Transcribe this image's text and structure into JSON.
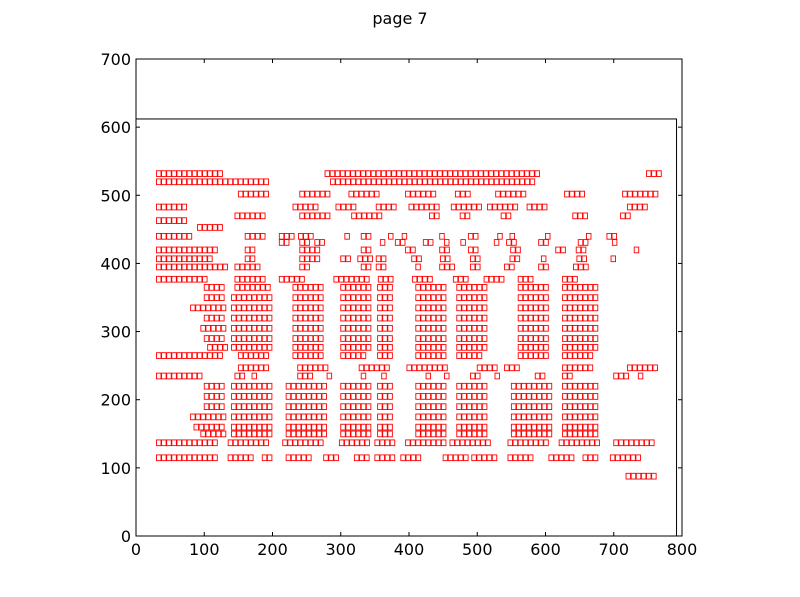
{
  "chart_data": {
    "type": "scatter",
    "title": "page 7",
    "xlabel": "",
    "ylabel": "",
    "xlim": [
      0,
      800
    ],
    "ylim": [
      0,
      700
    ],
    "x_ticks": [
      "0",
      "100",
      "200",
      "300",
      "400",
      "500",
      "600",
      "700",
      "800"
    ],
    "y_ticks": [
      "0",
      "100",
      "200",
      "300",
      "400",
      "500",
      "600",
      "700"
    ],
    "grid": false,
    "marker_color": "#ff0000",
    "page_outline": {
      "x0": 0,
      "y0": 0,
      "x1": 792,
      "y1": 612
    },
    "box_size": {
      "w": 7.5,
      "h": 9
    },
    "rows": [
      {
        "y": 527,
        "segments": [
          [
            30,
            130
          ],
          [
            277,
            592
          ],
          [
            748,
            773
          ]
        ]
      },
      {
        "y": 515,
        "segments": [
          [
            30,
            200
          ],
          [
            285,
            585
          ]
        ]
      },
      {
        "y": 497,
        "segments": [
          [
            150,
            198
          ],
          [
            240,
            290
          ],
          [
            312,
            362
          ],
          [
            395,
            445
          ],
          [
            468,
            495
          ],
          [
            527,
            575
          ],
          [
            628,
            665
          ],
          [
            713,
            768
          ]
        ]
      },
      {
        "y": 478,
        "segments": [
          [
            30,
            80
          ],
          [
            230,
            270
          ],
          [
            293,
            330
          ],
          [
            352,
            385
          ],
          [
            400,
            450
          ],
          [
            462,
            510
          ],
          [
            515,
            560
          ],
          [
            573,
            610
          ],
          [
            720,
            752
          ]
        ]
      },
      {
        "y": 465,
        "segments": [
          [
            145,
            195
          ],
          [
            240,
            288
          ],
          [
            316,
            366
          ],
          [
            430,
            447
          ],
          [
            475,
            492
          ],
          [
            535,
            550
          ],
          [
            640,
            665
          ],
          [
            710,
            728
          ]
        ]
      },
      {
        "y": 458,
        "segments": [
          [
            30,
            80
          ]
        ]
      },
      {
        "y": 448,
        "segments": [
          [
            90,
            130
          ]
        ]
      },
      {
        "y": 435,
        "segments": [
          [
            30,
            85
          ],
          [
            160,
            195
          ],
          [
            210,
            235
          ],
          [
            238,
            262
          ],
          [
            306,
            316
          ],
          [
            330,
            346
          ],
          [
            370,
            378
          ],
          [
            390,
            400
          ],
          [
            425,
            432
          ],
          [
            445,
            453
          ],
          [
            487,
            502
          ],
          [
            530,
            540
          ],
          [
            548,
            557
          ],
          [
            600,
            610
          ],
          [
            660,
            670
          ],
          [
            690,
            705
          ]
        ]
      },
      {
        "y": 426,
        "segments": [
          [
            210,
            225
          ],
          [
            240,
            255
          ],
          [
            262,
            278
          ],
          [
            335,
            340
          ],
          [
            358,
            372
          ],
          [
            380,
            402
          ],
          [
            421,
            436
          ],
          [
            452,
            462
          ],
          [
            476,
            490
          ],
          [
            525,
            536
          ],
          [
            543,
            560
          ],
          [
            590,
            605
          ],
          [
            648,
            663
          ],
          [
            698,
            712
          ]
        ]
      },
      {
        "y": 415,
        "segments": [
          [
            30,
            120
          ],
          [
            160,
            180
          ],
          [
            240,
            270
          ],
          [
            330,
            352
          ],
          [
            395,
            412
          ],
          [
            445,
            467
          ],
          [
            487,
            506
          ],
          [
            549,
            567
          ],
          [
            615,
            632
          ],
          [
            645,
            660
          ],
          [
            730,
            741
          ]
        ]
      },
      {
        "y": 402,
        "segments": [
          [
            30,
            115
          ],
          [
            160,
            180
          ],
          [
            240,
            270
          ],
          [
            300,
            316
          ],
          [
            325,
            350
          ],
          [
            352,
            372
          ],
          [
            404,
            420
          ],
          [
            446,
            468
          ],
          [
            490,
            510
          ],
          [
            548,
            566
          ],
          [
            594,
            608
          ],
          [
            646,
            668
          ],
          [
            696,
            708
          ]
        ]
      },
      {
        "y": 390,
        "segments": [
          [
            30,
            135
          ],
          [
            145,
            185
          ],
          [
            240,
            262
          ],
          [
            330,
            351
          ],
          [
            352,
            372
          ],
          [
            410,
            421
          ],
          [
            445,
            468
          ],
          [
            490,
            511
          ],
          [
            540,
            560
          ],
          [
            590,
            612
          ],
          [
            641,
            664
          ]
        ]
      },
      {
        "y": 372,
        "segments": [
          [
            30,
            105
          ],
          [
            145,
            195
          ],
          [
            210,
            250
          ],
          [
            290,
            345
          ],
          [
            355,
            382
          ],
          [
            405,
            441
          ],
          [
            465,
            492
          ],
          [
            510,
            540
          ],
          [
            560,
            585
          ],
          [
            625,
            650
          ]
        ]
      },
      {
        "y": 360,
        "segments": [
          [
            100,
            135
          ],
          [
            145,
            200
          ],
          [
            230,
            280
          ],
          [
            300,
            345
          ],
          [
            354,
            382
          ],
          [
            410,
            460
          ],
          [
            470,
            520
          ],
          [
            560,
            610
          ],
          [
            625,
            680
          ]
        ]
      },
      {
        "y": 345,
        "segments": [
          [
            100,
            135
          ],
          [
            140,
            200
          ],
          [
            230,
            280
          ],
          [
            300,
            345
          ],
          [
            354,
            382
          ],
          [
            410,
            460
          ],
          [
            470,
            520
          ],
          [
            560,
            610
          ],
          [
            625,
            680
          ]
        ]
      },
      {
        "y": 330,
        "segments": [
          [
            80,
            135
          ],
          [
            140,
            200
          ],
          [
            230,
            280
          ],
          [
            300,
            345
          ],
          [
            354,
            382
          ],
          [
            410,
            460
          ],
          [
            470,
            520
          ],
          [
            560,
            610
          ],
          [
            625,
            680
          ]
        ]
      },
      {
        "y": 315,
        "segments": [
          [
            100,
            135
          ],
          [
            140,
            200
          ],
          [
            230,
            280
          ],
          [
            300,
            345
          ],
          [
            354,
            382
          ],
          [
            410,
            460
          ],
          [
            470,
            520
          ],
          [
            560,
            610
          ],
          [
            625,
            680
          ]
        ]
      },
      {
        "y": 300,
        "segments": [
          [
            95,
            135
          ],
          [
            140,
            200
          ],
          [
            230,
            280
          ],
          [
            300,
            345
          ],
          [
            354,
            382
          ],
          [
            410,
            460
          ],
          [
            470,
            520
          ],
          [
            560,
            610
          ],
          [
            625,
            680
          ]
        ]
      },
      {
        "y": 285,
        "segments": [
          [
            100,
            135
          ],
          [
            140,
            200
          ],
          [
            230,
            280
          ],
          [
            300,
            345
          ],
          [
            354,
            382
          ],
          [
            410,
            460
          ],
          [
            470,
            520
          ],
          [
            560,
            610
          ],
          [
            625,
            680
          ]
        ]
      },
      {
        "y": 272,
        "segments": [
          [
            105,
            135
          ],
          [
            140,
            200
          ],
          [
            230,
            280
          ],
          [
            300,
            345
          ],
          [
            354,
            382
          ],
          [
            410,
            460
          ],
          [
            470,
            520
          ],
          [
            560,
            610
          ],
          [
            625,
            680
          ]
        ]
      },
      {
        "y": 260,
        "segments": [
          [
            30,
            130
          ],
          [
            150,
            200
          ],
          [
            230,
            275
          ],
          [
            300,
            340
          ],
          [
            354,
            382
          ],
          [
            410,
            460
          ],
          [
            470,
            510
          ],
          [
            560,
            610
          ],
          [
            625,
            675
          ]
        ]
      },
      {
        "y": 242,
        "segments": [
          [
            150,
            198
          ],
          [
            237,
            287
          ],
          [
            327,
            372
          ],
          [
            397,
            462
          ],
          [
            500,
            532
          ],
          [
            540,
            567
          ],
          [
            625,
            675
          ],
          [
            720,
            770
          ]
        ]
      },
      {
        "y": 230,
        "segments": [
          [
            30,
            100
          ],
          [
            145,
            160
          ],
          [
            170,
            182
          ],
          [
            237,
            260
          ],
          [
            280,
            290
          ],
          [
            330,
            340
          ],
          [
            360,
            370
          ],
          [
            425,
            435
          ],
          [
            452,
            462
          ],
          [
            490,
            508
          ],
          [
            526,
            540
          ],
          [
            585,
            600
          ],
          [
            625,
            640
          ],
          [
            700,
            725
          ],
          [
            736,
            746
          ]
        ]
      },
      {
        "y": 215,
        "segments": [
          [
            100,
            135
          ],
          [
            140,
            200
          ],
          [
            220,
            280
          ],
          [
            300,
            345
          ],
          [
            354,
            382
          ],
          [
            410,
            460
          ],
          [
            470,
            520
          ],
          [
            550,
            610
          ],
          [
            625,
            680
          ]
        ]
      },
      {
        "y": 200,
        "segments": [
          [
            100,
            135
          ],
          [
            140,
            200
          ],
          [
            220,
            280
          ],
          [
            300,
            345
          ],
          [
            354,
            382
          ],
          [
            410,
            460
          ],
          [
            470,
            520
          ],
          [
            550,
            610
          ],
          [
            625,
            680
          ]
        ]
      },
      {
        "y": 185,
        "segments": [
          [
            100,
            135
          ],
          [
            140,
            200
          ],
          [
            220,
            280
          ],
          [
            300,
            345
          ],
          [
            354,
            382
          ],
          [
            410,
            460
          ],
          [
            470,
            520
          ],
          [
            550,
            610
          ],
          [
            625,
            680
          ]
        ]
      },
      {
        "y": 170,
        "segments": [
          [
            80,
            135
          ],
          [
            140,
            200
          ],
          [
            220,
            280
          ],
          [
            300,
            345
          ],
          [
            354,
            382
          ],
          [
            410,
            460
          ],
          [
            470,
            520
          ],
          [
            550,
            610
          ],
          [
            625,
            680
          ]
        ]
      },
      {
        "y": 155,
        "segments": [
          [
            85,
            135
          ],
          [
            140,
            200
          ],
          [
            220,
            280
          ],
          [
            300,
            345
          ],
          [
            354,
            382
          ],
          [
            410,
            460
          ],
          [
            470,
            520
          ],
          [
            550,
            610
          ],
          [
            625,
            680
          ]
        ]
      },
      {
        "y": 145,
        "segments": [
          [
            95,
            135
          ],
          [
            140,
            200
          ],
          [
            220,
            280
          ],
          [
            300,
            345
          ],
          [
            354,
            382
          ],
          [
            410,
            460
          ],
          [
            470,
            520
          ],
          [
            550,
            610
          ],
          [
            625,
            680
          ]
        ]
      },
      {
        "y": 132,
        "segments": [
          [
            30,
            120
          ],
          [
            135,
            200
          ],
          [
            215,
            280
          ],
          [
            298,
            345
          ],
          [
            350,
            382
          ],
          [
            395,
            460
          ],
          [
            460,
            520
          ],
          [
            545,
            610
          ],
          [
            620,
            680
          ],
          [
            700,
            760
          ]
        ]
      },
      {
        "y": 110,
        "segments": [
          [
            30,
            120
          ],
          [
            135,
            175
          ],
          [
            185,
            200
          ],
          [
            220,
            262
          ],
          [
            275,
            300
          ],
          [
            320,
            345
          ],
          [
            350,
            380
          ],
          [
            388,
            420
          ],
          [
            450,
            490
          ],
          [
            492,
            530
          ],
          [
            545,
            585
          ],
          [
            605,
            645
          ],
          [
            655,
            680
          ],
          [
            695,
            745
          ]
        ]
      },
      {
        "y": 83,
        "segments": [
          [
            718,
            770
          ]
        ]
      }
    ]
  }
}
